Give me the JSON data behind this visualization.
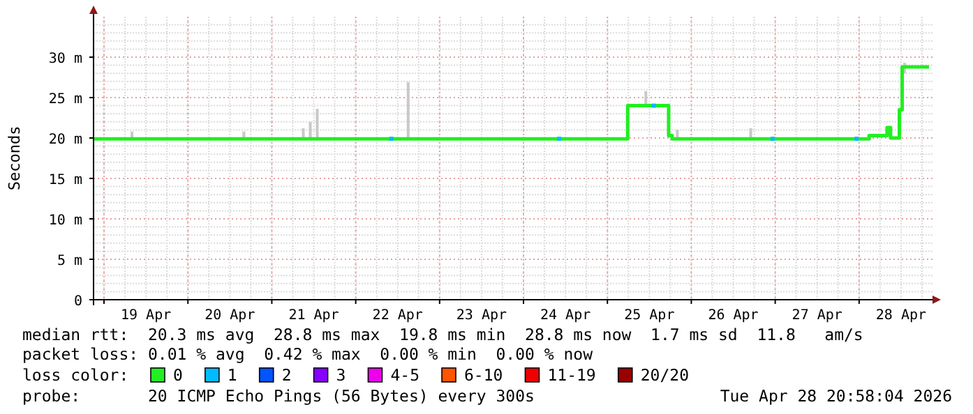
{
  "chart_data": {
    "type": "step",
    "ylabel": "Seconds",
    "legend_title": "loss color:",
    "legend": "bottom",
    "grid": true,
    "xlim": [
      "2026-04-18T21:00",
      "2026-04-28T21:00"
    ],
    "xticks": [
      {
        "value": "2026-04-19T00:00",
        "label": null
      },
      {
        "value": "2026-04-19T12:00",
        "label": "19 Apr"
      },
      {
        "value": "2026-04-20T00:00",
        "label": null
      },
      {
        "value": "2026-04-20T12:00",
        "label": "20 Apr"
      },
      {
        "value": "2026-04-21T00:00",
        "label": null
      },
      {
        "value": "2026-04-21T12:00",
        "label": "21 Apr"
      },
      {
        "value": "2026-04-22T00:00",
        "label": null
      },
      {
        "value": "2026-04-22T12:00",
        "label": "22 Apr"
      },
      {
        "value": "2026-04-23T00:00",
        "label": null
      },
      {
        "value": "2026-04-23T12:00",
        "label": "23 Apr"
      },
      {
        "value": "2026-04-24T00:00",
        "label": null
      },
      {
        "value": "2026-04-24T12:00",
        "label": "24 Apr"
      },
      {
        "value": "2026-04-25T00:00",
        "label": null
      },
      {
        "value": "2026-04-25T12:00",
        "label": "25 Apr"
      },
      {
        "value": "2026-04-26T00:00",
        "label": null
      },
      {
        "value": "2026-04-26T12:00",
        "label": "26 Apr"
      },
      {
        "value": "2026-04-27T00:00",
        "label": null
      },
      {
        "value": "2026-04-27T12:00",
        "label": "27 Apr"
      },
      {
        "value": "2026-04-28T00:00",
        "label": null
      },
      {
        "value": "2026-04-28T12:00",
        "label": "28 Apr"
      }
    ],
    "ylim": [
      0,
      35
    ],
    "yticks": [
      0,
      {
        "value": 5,
        "label": "5 m"
      },
      {
        "value": 10,
        "label": "10 m"
      },
      {
        "value": 15,
        "label": "15 m"
      },
      {
        "value": 20,
        "label": "20 m"
      },
      {
        "value": 25,
        "label": "25 m"
      },
      {
        "value": 30,
        "label": "30 m"
      }
    ],
    "series": [
      {
        "type": "bar",
        "color": "#c8c8c8",
        "x": [
          "2026-04-19T08:00",
          "2026-04-20T16:00",
          "2026-04-21T09:00",
          "2026-04-21T11:00",
          "2026-04-21T13:00",
          "2026-04-22T15:00",
          "2026-04-25T11:00",
          "2026-04-25T20:00",
          "2026-04-26T17:00",
          "2026-04-28T13:00"
        ],
        "base": [
          20,
          20,
          20,
          20,
          20,
          20,
          24,
          20,
          20,
          28
        ],
        "values": [
          0.8,
          0.8,
          1.2,
          2,
          3.6,
          6.9,
          1.8,
          1,
          1.2,
          1.3
        ]
      },
      {
        "name": "0",
        "color": "#22ee22",
        "x": [
          "2026-04-18T21:00",
          "2026-04-25T05:48",
          "2026-04-25T17:31",
          "2026-04-25T18:30",
          "2026-04-28T02:52",
          "2026-04-28T08:00",
          "2026-04-28T09:00",
          "2026-04-28T11:31",
          "2026-04-28T12:19",
          "2026-04-28T20:00"
        ],
        "values": [
          19.9,
          24,
          20.3,
          19.9,
          20.3,
          21.3,
          20,
          23.5,
          28.8,
          28.8
        ]
      },
      {
        "type": "scatter",
        "name": "1",
        "color": "#00bbff",
        "x": [
          "2026-04-22T10:12",
          "2026-04-24T10:12",
          "2026-04-25T13:16",
          "2026-04-26T23:17",
          "2026-04-27T23:17"
        ],
        "values": [
          19.9,
          19.9,
          24,
          19.9,
          19.9
        ]
      },
      {
        "type": "scatter",
        "name": "2",
        "color": "#0055ff"
      },
      {
        "type": "scatter",
        "name": "3",
        "color": "#8800ff"
      },
      {
        "type": "scatter",
        "name": "4-5",
        "color": "#ee00ee"
      },
      {
        "type": "scatter",
        "name": "6-10",
        "color": "#ff5500"
      },
      {
        "type": "scatter",
        "name": "11-19",
        "color": "#ee0000"
      },
      {
        "type": "scatter",
        "name": "20/20",
        "color": "#990000"
      }
    ],
    "annotations": [
      "median rtt:  20.3 ms avg  28.8 ms max  19.8 ms min  28.8 ms now  1.7 ms sd  11.8   am/s",
      "packet loss: 0.01 % avg  0.42 % max  0.00 % min  0.00 % now",
      "probe:       20 ICMP Echo Pings (56 Bytes) every 300s",
      "Tue Apr 28 20:58:04 2026"
    ]
  }
}
